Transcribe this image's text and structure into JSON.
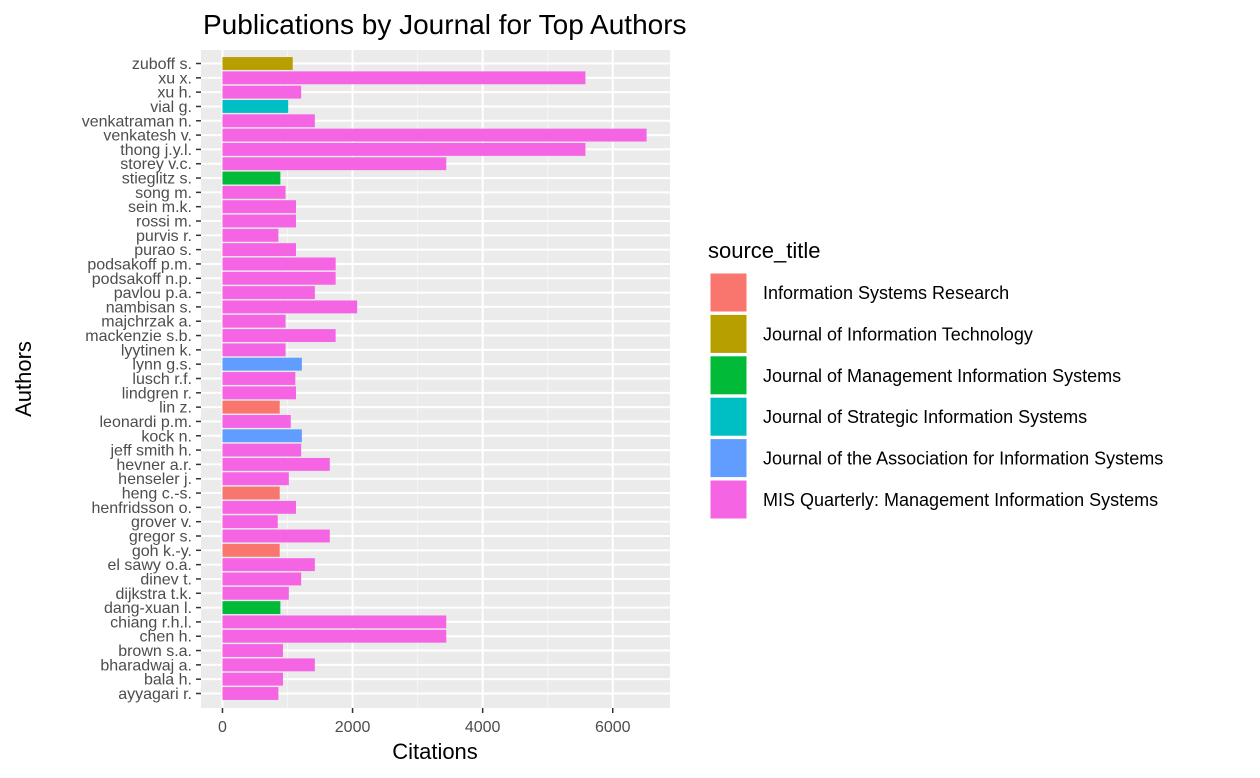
{
  "chart_data": {
    "type": "bar",
    "orientation": "horizontal",
    "title": "Publications by Journal for Top Authors",
    "xlabel": "Citations",
    "ylabel": "Authors",
    "xlim": [
      -330,
      6880
    ],
    "xticks": [
      0,
      2000,
      4000,
      6000
    ],
    "xtick_labels": [
      "0",
      "2000",
      "4000",
      "6000"
    ],
    "grid": true,
    "legend_position": "right",
    "legend": {
      "title": "source_title",
      "entries": [
        {
          "label": "Information Systems Research",
          "color": "#F8766D"
        },
        {
          "label": "Journal of Information Technology",
          "color": "#B79F00"
        },
        {
          "label": "Journal of Management Information Systems",
          "color": "#00BA38"
        },
        {
          "label": "Journal of Strategic Information Systems",
          "color": "#00BFC4"
        },
        {
          "label": "Journal of the Association for Information Systems",
          "color": "#619CFF"
        },
        {
          "label": "MIS Quarterly: Management Information Systems",
          "color": "#F564E3"
        }
      ]
    },
    "bars": [
      {
        "author": "zuboff s.",
        "value": 1080,
        "journal": 1
      },
      {
        "author": "xu x.",
        "value": 5580,
        "journal": 5
      },
      {
        "author": "xu h.",
        "value": 1210,
        "journal": 5
      },
      {
        "author": "vial g.",
        "value": 1010,
        "journal": 3
      },
      {
        "author": "venkatraman n.",
        "value": 1420,
        "journal": 5
      },
      {
        "author": "venkatesh v.",
        "value": 6520,
        "journal": 5
      },
      {
        "author": "thong j.y.l.",
        "value": 5580,
        "journal": 5
      },
      {
        "author": "storey v.c.",
        "value": 3440,
        "journal": 5
      },
      {
        "author": "stieglitz s.",
        "value": 890,
        "journal": 2
      },
      {
        "author": "song m.",
        "value": 970,
        "journal": 5
      },
      {
        "author": "sein m.k.",
        "value": 1130,
        "journal": 5
      },
      {
        "author": "rossi m.",
        "value": 1130,
        "journal": 5
      },
      {
        "author": "purvis r.",
        "value": 860,
        "journal": 5
      },
      {
        "author": "purao s.",
        "value": 1130,
        "journal": 5
      },
      {
        "author": "podsakoff p.m.",
        "value": 1740,
        "journal": 5
      },
      {
        "author": "podsakoff n.p.",
        "value": 1740,
        "journal": 5
      },
      {
        "author": "pavlou p.a.",
        "value": 1420,
        "journal": 5
      },
      {
        "author": "nambisan s.",
        "value": 2070,
        "journal": 5
      },
      {
        "author": "majchrzak a.",
        "value": 970,
        "journal": 5
      },
      {
        "author": "mackenzie s.b.",
        "value": 1740,
        "journal": 5
      },
      {
        "author": "lyytinen k.",
        "value": 970,
        "journal": 5
      },
      {
        "author": "lynn g.s.",
        "value": 1220,
        "journal": 4
      },
      {
        "author": "lusch r.f.",
        "value": 1120,
        "journal": 5
      },
      {
        "author": "lindgren r.",
        "value": 1130,
        "journal": 5
      },
      {
        "author": "lin z.",
        "value": 880,
        "journal": 0
      },
      {
        "author": "leonardi p.m.",
        "value": 1050,
        "journal": 5
      },
      {
        "author": "kock n.",
        "value": 1220,
        "journal": 4
      },
      {
        "author": "jeff smith h.",
        "value": 1210,
        "journal": 5
      },
      {
        "author": "hevner a.r.",
        "value": 1650,
        "journal": 5
      },
      {
        "author": "henseler j.",
        "value": 1020,
        "journal": 5
      },
      {
        "author": "heng c.-s.",
        "value": 880,
        "journal": 0
      },
      {
        "author": "henfridsson o.",
        "value": 1130,
        "journal": 5
      },
      {
        "author": "grover v.",
        "value": 850,
        "journal": 5
      },
      {
        "author": "gregor s.",
        "value": 1650,
        "journal": 5
      },
      {
        "author": "goh k.-y.",
        "value": 880,
        "journal": 0
      },
      {
        "author": "el sawy o.a.",
        "value": 1420,
        "journal": 5
      },
      {
        "author": "dinev t.",
        "value": 1210,
        "journal": 5
      },
      {
        "author": "dijkstra t.k.",
        "value": 1020,
        "journal": 5
      },
      {
        "author": "dang-xuan l.",
        "value": 890,
        "journal": 2
      },
      {
        "author": "chiang r.h.l.",
        "value": 3440,
        "journal": 5
      },
      {
        "author": "chen h.",
        "value": 3440,
        "journal": 5
      },
      {
        "author": "brown s.a.",
        "value": 930,
        "journal": 5
      },
      {
        "author": "bharadwaj a.",
        "value": 1420,
        "journal": 5
      },
      {
        "author": "bala h.",
        "value": 930,
        "journal": 5
      },
      {
        "author": "ayyagari r.",
        "value": 860,
        "journal": 5
      }
    ]
  }
}
